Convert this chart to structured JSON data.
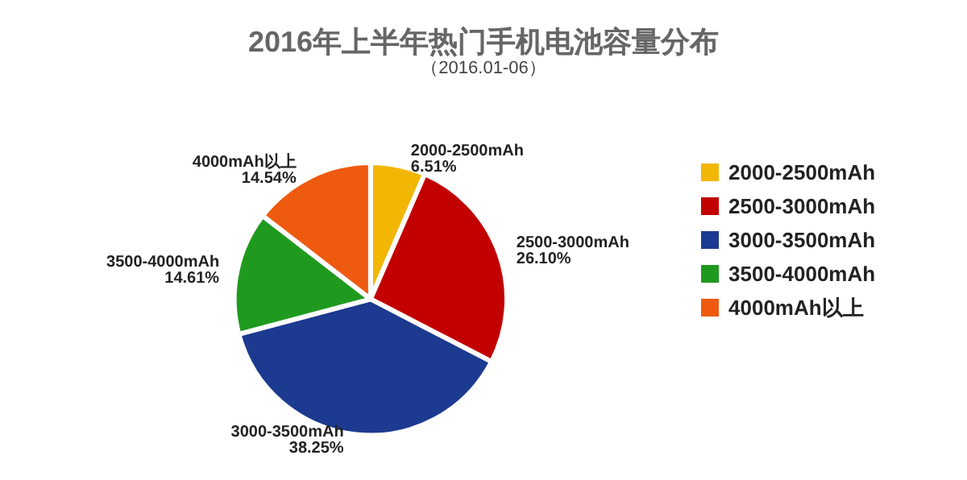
{
  "chart_data": {
    "type": "pie",
    "title": "2016年上半年热门手机电池容量分布",
    "subtitle": "（2016.01-06）",
    "categories": [
      "2000-2500mAh",
      "2500-3000mAh",
      "3000-3500mAh",
      "3500-4000mAh",
      "4000mAh以上"
    ],
    "values": [
      6.51,
      26.1,
      38.25,
      14.61,
      14.54
    ],
    "colors": [
      "#f2b705",
      "#c20000",
      "#1c3a8f",
      "#1f9a1f",
      "#ee5a10"
    ],
    "value_labels": [
      "6.51%",
      "26.10%",
      "38.25%",
      "14.61%",
      "14.54%"
    ],
    "legend": "right"
  }
}
